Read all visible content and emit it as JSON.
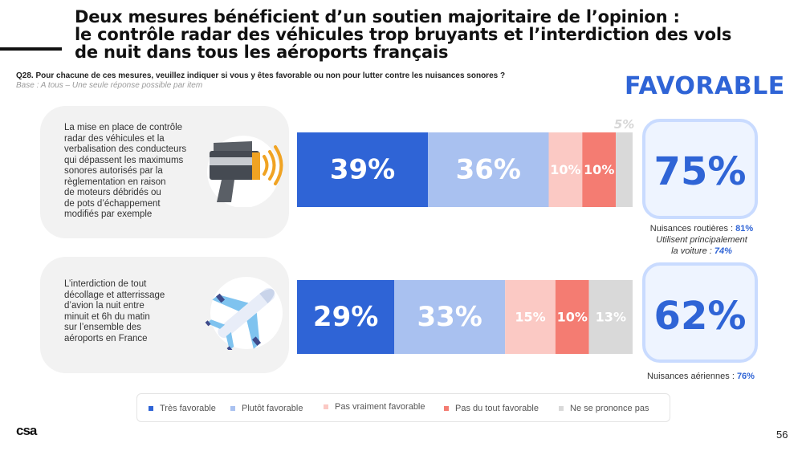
{
  "header": {
    "title_lines": [
      "Deux mesures bénéficient d’un soutien majoritaire de l’opinion :",
      "le contrôle radar des véhicules trop bruyants et l’interdiction des vols",
      "de nuit dans tous les aéroports français"
    ],
    "question": "Q28. Pour chacune de ces mesures, veuillez indiquer si vous y êtes favorable ou non pour lutter contre les nuisances sonores ?",
    "base": "Base : A tous – Une seule réponse possible par item",
    "favorable_heading": "FAVORABLE"
  },
  "items": [
    {
      "text_lines": [
        "La mise en place de contrôle",
        "radar des véhicules et la",
        "verbalisation des conducteurs",
        "qui dépassent les maximums",
        "sonores autorisés par la",
        "règlementation en raison",
        "de moteurs débridés ou",
        "de pots d’échappement",
        "modifiés par exemple"
      ],
      "icon": "speed-radar-icon",
      "favorable_total": "75%",
      "note_lines": [
        {
          "label": "Nuisances routières : ",
          "value": "81%",
          "italic": false
        },
        {
          "label": "Utilisent principalement",
          "value": "",
          "italic": true
        },
        {
          "label": "la voiture : ",
          "value": "74%",
          "italic": true
        }
      ]
    },
    {
      "text_lines": [
        "L’interdiction de tout",
        "décollage et atterrissage",
        "d’avion la nuit entre",
        "minuit et 6h du matin",
        "sur l’ensemble des",
        "aéroports en France"
      ],
      "icon": "airplane-icon",
      "favorable_total": "62%",
      "note_lines": [
        {
          "label": "Nuisances aériennes : ",
          "value": "76%",
          "italic": false
        }
      ]
    }
  ],
  "chart_data": {
    "type": "bar",
    "orientation": "horizontal",
    "stacked": true,
    "categories": [
      "item-1",
      "item-2"
    ],
    "xlim": [
      0,
      100
    ],
    "series": [
      {
        "name": "Très favorable",
        "color": "#2f64d6",
        "values": [
          39,
          29
        ],
        "labels": [
          "39%",
          "29%"
        ]
      },
      {
        "name": "Plutôt favorable",
        "color": "#a9c1f0",
        "values": [
          36,
          33
        ],
        "labels": [
          "36%",
          "33%"
        ]
      },
      {
        "name": "Pas vraiment favorable",
        "color": "#fbc9c4",
        "values": [
          10,
          15
        ],
        "labels": [
          "10%",
          "15%"
        ]
      },
      {
        "name": "Pas du tout favorable",
        "color": "#f47c72",
        "values": [
          10,
          10
        ],
        "labels": [
          "10%",
          "10%"
        ]
      },
      {
        "name": "Ne se prononce pas",
        "color": "#d9d9d9",
        "values": [
          5,
          13
        ],
        "labels": [
          "5%",
          "13%"
        ]
      }
    ],
    "legend": "bottom"
  },
  "footer": {
    "logo": "csa",
    "page_number": "56"
  }
}
